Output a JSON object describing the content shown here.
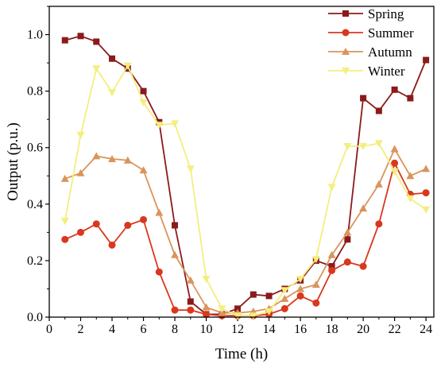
{
  "chart_data": {
    "type": "line",
    "title": "",
    "xlabel": "Time (h)",
    "ylabel": "Output (p.u.)",
    "xlim": [
      0,
      24.5
    ],
    "ylim": [
      0,
      1.1
    ],
    "xticks": [
      0,
      2,
      4,
      6,
      8,
      10,
      12,
      14,
      16,
      18,
      20,
      22,
      24
    ],
    "yticks": [
      0.0,
      0.2,
      0.4,
      0.6,
      0.8,
      1.0
    ],
    "ytick_labels": [
      "0.0",
      "0.2",
      "0.4",
      "0.6",
      "0.8",
      "1.0"
    ],
    "grid": false,
    "legend_position": "top-right",
    "x": [
      1,
      2,
      3,
      4,
      5,
      6,
      7,
      8,
      9,
      10,
      11,
      12,
      13,
      14,
      15,
      16,
      17,
      18,
      19,
      20,
      21,
      22,
      23,
      24
    ],
    "series": [
      {
        "name": "Spring",
        "marker": "square",
        "color": "#8B1A1A",
        "values": [
          0.98,
          0.995,
          0.975,
          0.915,
          0.88,
          0.8,
          0.69,
          0.325,
          0.055,
          0.01,
          0.01,
          0.03,
          0.08,
          0.075,
          0.1,
          0.13,
          0.2,
          0.18,
          0.275,
          0.775,
          0.73,
          0.805,
          0.775,
          0.91
        ]
      },
      {
        "name": "Summer",
        "marker": "circle",
        "color": "#D9381E",
        "values": [
          0.275,
          0.3,
          0.33,
          0.255,
          0.325,
          0.345,
          0.16,
          0.025,
          0.025,
          0.01,
          0.005,
          0.005,
          0.005,
          0.01,
          0.03,
          0.075,
          0.05,
          0.165,
          0.195,
          0.18,
          0.33,
          0.545,
          0.435,
          0.44
        ]
      },
      {
        "name": "Autumn",
        "marker": "triangle-up",
        "color": "#D9955C",
        "values": [
          0.49,
          0.51,
          0.57,
          0.56,
          0.555,
          0.52,
          0.37,
          0.22,
          0.13,
          0.035,
          0.015,
          0.015,
          0.02,
          0.03,
          0.065,
          0.1,
          0.115,
          0.22,
          0.3,
          0.385,
          0.47,
          0.595,
          0.5,
          0.525
        ]
      },
      {
        "name": "Winter",
        "marker": "triangle-down",
        "color": "#F4EE7E",
        "values": [
          0.34,
          0.645,
          0.88,
          0.795,
          0.89,
          0.76,
          0.68,
          0.685,
          0.525,
          0.135,
          0.03,
          0.005,
          0.005,
          0.02,
          0.095,
          0.135,
          0.205,
          0.46,
          0.605,
          0.605,
          0.615,
          0.515,
          0.42,
          0.38
        ]
      }
    ]
  }
}
